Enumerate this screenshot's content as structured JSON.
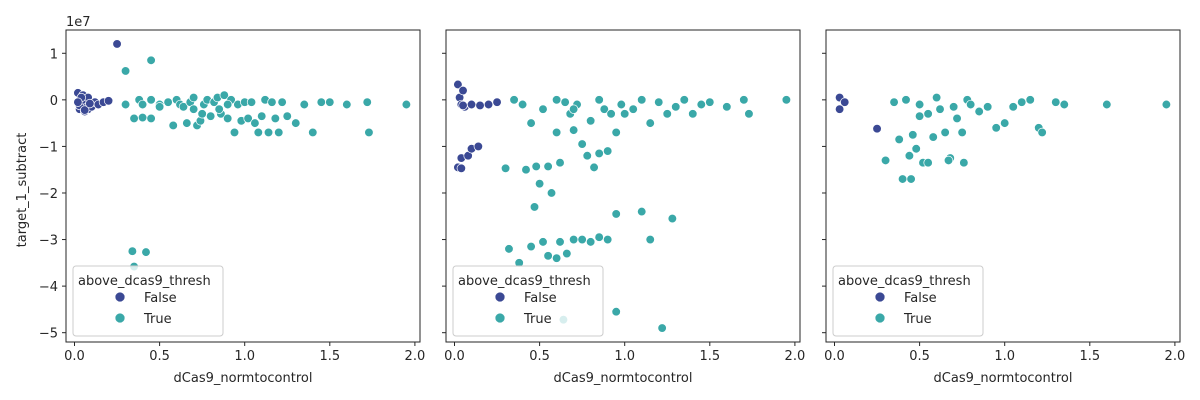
{
  "colors": {
    "false": "#3b4994",
    "true": "#3aa8a8"
  },
  "chart_data": [
    {
      "type": "scatter",
      "xlabel": "dCas9_normtocontrol",
      "ylabel": "target_1_subtract",
      "y_offset_label": "1e7",
      "xlim": [
        -0.05,
        2.03
      ],
      "ylim": [
        -5.2,
        1.5
      ],
      "x_ticks": [
        0.0,
        0.5,
        1.0,
        1.5,
        2.0
      ],
      "x_tick_labels": [
        "0.0",
        "0.5",
        "1.0",
        "1.5",
        "2.0"
      ],
      "y_ticks": [
        1,
        0,
        -1,
        -2,
        -3,
        -4,
        -5
      ],
      "y_tick_labels": [
        "1",
        "0",
        "−1",
        "−2",
        "−3",
        "−4",
        "−5"
      ],
      "legend": {
        "title": "above_dcas9_thresh",
        "entries": [
          "False",
          "True"
        ]
      },
      "series": [
        {
          "name": "False",
          "points": [
            [
              0.02,
              0.15
            ],
            [
              0.03,
              -0.2
            ],
            [
              0.04,
              -0.05
            ],
            [
              0.05,
              0.1
            ],
            [
              0.06,
              -0.25
            ],
            [
              0.07,
              -0.1
            ],
            [
              0.03,
              -0.12
            ],
            [
              0.05,
              0.0
            ],
            [
              0.08,
              -0.2
            ],
            [
              0.08,
              0.05
            ],
            [
              0.1,
              -0.15
            ],
            [
              0.12,
              -0.05
            ],
            [
              0.14,
              -0.1
            ],
            [
              0.17,
              -0.05
            ],
            [
              0.2,
              -0.02
            ],
            [
              0.06,
              -0.22
            ],
            [
              0.25,
              1.2
            ],
            [
              0.04,
              0.05
            ],
            [
              0.09,
              -0.08
            ],
            [
              0.02,
              -0.05
            ]
          ]
        },
        {
          "name": "True",
          "points": [
            [
              0.3,
              0.62
            ],
            [
              0.45,
              0.85
            ],
            [
              0.3,
              -0.1
            ],
            [
              0.35,
              -0.4
            ],
            [
              0.4,
              -0.38
            ],
            [
              0.45,
              -0.4
            ],
            [
              0.38,
              0.0
            ],
            [
              0.4,
              -0.1
            ],
            [
              0.45,
              0.0
            ],
            [
              0.5,
              -0.1
            ],
            [
              0.55,
              -0.05
            ],
            [
              0.58,
              -0.55
            ],
            [
              0.6,
              0.0
            ],
            [
              0.62,
              -0.1
            ],
            [
              0.64,
              -0.15
            ],
            [
              0.66,
              -0.5
            ],
            [
              0.68,
              -0.05
            ],
            [
              0.7,
              -0.2
            ],
            [
              0.72,
              -0.55
            ],
            [
              0.74,
              -0.45
            ],
            [
              0.76,
              -0.1
            ],
            [
              0.78,
              0.0
            ],
            [
              0.8,
              -0.35
            ],
            [
              0.82,
              -0.05
            ],
            [
              0.84,
              0.05
            ],
            [
              0.86,
              -0.3
            ],
            [
              0.88,
              0.1
            ],
            [
              0.9,
              -0.4
            ],
            [
              0.92,
              0.0
            ],
            [
              0.94,
              -0.7
            ],
            [
              0.96,
              -0.1
            ],
            [
              0.98,
              -0.45
            ],
            [
              1.0,
              -0.05
            ],
            [
              1.02,
              -0.4
            ],
            [
              1.04,
              -0.05
            ],
            [
              1.06,
              -0.5
            ],
            [
              1.08,
              -0.7
            ],
            [
              1.1,
              -0.35
            ],
            [
              1.12,
              0.0
            ],
            [
              1.14,
              -0.7
            ],
            [
              1.16,
              -0.05
            ],
            [
              1.18,
              -0.4
            ],
            [
              1.2,
              -0.7
            ],
            [
              1.22,
              -0.05
            ],
            [
              1.25,
              -0.35
            ],
            [
              1.3,
              -0.5
            ],
            [
              1.35,
              -0.1
            ],
            [
              1.4,
              -0.7
            ],
            [
              1.45,
              -0.05
            ],
            [
              1.5,
              -0.05
            ],
            [
              1.6,
              -0.1
            ],
            [
              1.72,
              -0.05
            ],
            [
              1.73,
              -0.7
            ],
            [
              1.95,
              -0.1
            ],
            [
              0.34,
              -3.25
            ],
            [
              0.35,
              -3.58
            ],
            [
              0.42,
              -3.27
            ],
            [
              0.5,
              -0.15
            ],
            [
              0.7,
              0.05
            ],
            [
              0.75,
              -0.3
            ],
            [
              0.85,
              -0.2
            ],
            [
              0.9,
              -0.1
            ]
          ]
        }
      ]
    },
    {
      "type": "scatter",
      "xlabel": "dCas9_normtocontrol",
      "ylabel": "",
      "xlim": [
        -0.05,
        2.03
      ],
      "ylim": [
        -5.2,
        1.5
      ],
      "x_ticks": [
        0.0,
        0.5,
        1.0,
        1.5,
        2.0
      ],
      "x_tick_labels": [
        "0.0",
        "0.5",
        "1.0",
        "1.5",
        "2.0"
      ],
      "y_ticks": [
        1,
        0,
        -1,
        -2,
        -3,
        -4,
        -5
      ],
      "legend": {
        "title": "above_dcas9_thresh",
        "entries": [
          "False",
          "True"
        ]
      },
      "series": [
        {
          "name": "False",
          "points": [
            [
              0.02,
              0.33
            ],
            [
              0.03,
              0.05
            ],
            [
              0.04,
              -0.1
            ],
            [
              0.05,
              0.2
            ],
            [
              0.06,
              -0.15
            ],
            [
              0.04,
              -1.25
            ],
            [
              0.08,
              -1.2
            ],
            [
              0.1,
              -1.05
            ],
            [
              0.14,
              -1.0
            ],
            [
              0.02,
              -1.45
            ],
            [
              0.04,
              -1.47
            ],
            [
              0.1,
              -0.1
            ],
            [
              0.15,
              -0.12
            ],
            [
              0.2,
              -0.1
            ],
            [
              0.25,
              -0.05
            ],
            [
              0.05,
              -0.12
            ]
          ]
        },
        {
          "name": "True",
          "points": [
            [
              0.3,
              -1.47
            ],
            [
              0.35,
              0.0
            ],
            [
              0.4,
              -0.1
            ],
            [
              0.42,
              -1.5
            ],
            [
              0.45,
              -0.5
            ],
            [
              0.48,
              -1.43
            ],
            [
              0.5,
              -1.8
            ],
            [
              0.52,
              -0.2
            ],
            [
              0.55,
              -1.43
            ],
            [
              0.57,
              -2.0
            ],
            [
              0.6,
              -0.7
            ],
            [
              0.62,
              -1.35
            ],
            [
              0.65,
              -0.05
            ],
            [
              0.68,
              -0.3
            ],
            [
              0.7,
              -0.65
            ],
            [
              0.72,
              -0.1
            ],
            [
              0.75,
              -0.95
            ],
            [
              0.78,
              -1.2
            ],
            [
              0.8,
              -0.45
            ],
            [
              0.82,
              -1.45
            ],
            [
              0.85,
              -1.15
            ],
            [
              0.88,
              -0.2
            ],
            [
              0.9,
              -1.1
            ],
            [
              0.92,
              -0.3
            ],
            [
              0.95,
              -0.7
            ],
            [
              0.98,
              -0.1
            ],
            [
              1.0,
              -0.3
            ],
            [
              1.05,
              -0.2
            ],
            [
              1.1,
              0.0
            ],
            [
              1.15,
              -0.5
            ],
            [
              1.2,
              -0.05
            ],
            [
              1.25,
              -0.3
            ],
            [
              1.3,
              -0.15
            ],
            [
              1.35,
              0.0
            ],
            [
              1.4,
              -0.3
            ],
            [
              1.45,
              -0.1
            ],
            [
              1.5,
              -0.05
            ],
            [
              1.6,
              -0.15
            ],
            [
              1.7,
              0.0
            ],
            [
              1.73,
              -0.3
            ],
            [
              1.95,
              0.0
            ],
            [
              0.47,
              -2.3
            ],
            [
              0.32,
              -3.2
            ],
            [
              0.38,
              -3.5
            ],
            [
              0.45,
              -3.15
            ],
            [
              0.52,
              -3.05
            ],
            [
              0.55,
              -3.35
            ],
            [
              0.6,
              -3.4
            ],
            [
              0.62,
              -3.05
            ],
            [
              0.66,
              -3.3
            ],
            [
              0.7,
              -3.0
            ],
            [
              0.75,
              -3.0
            ],
            [
              0.8,
              -3.05
            ],
            [
              0.85,
              -2.95
            ],
            [
              0.9,
              -3.0
            ],
            [
              0.95,
              -2.45
            ],
            [
              1.1,
              -2.4
            ],
            [
              1.15,
              -3.0
            ],
            [
              1.28,
              -2.55
            ],
            [
              0.64,
              -4.72
            ],
            [
              0.95,
              -4.55
            ],
            [
              1.22,
              -4.9
            ],
            [
              0.6,
              0.0
            ],
            [
              0.7,
              -0.2
            ],
            [
              0.85,
              0.0
            ]
          ]
        }
      ]
    },
    {
      "type": "scatter",
      "xlabel": "dCas9_normtocontrol",
      "ylabel": "",
      "xlim": [
        -0.05,
        2.03
      ],
      "ylim": [
        -5.2,
        1.5
      ],
      "x_ticks": [
        0.0,
        0.5,
        1.0,
        1.5,
        2.0
      ],
      "x_tick_labels": [
        "0.0",
        "0.5",
        "1.0",
        "1.5",
        "2.0"
      ],
      "y_ticks": [
        1,
        0,
        -1,
        -2,
        -3,
        -4,
        -5
      ],
      "legend": {
        "title": "above_dcas9_thresh",
        "entries": [
          "False",
          "True"
        ]
      },
      "series": [
        {
          "name": "False",
          "points": [
            [
              0.03,
              0.05
            ],
            [
              0.06,
              -0.05
            ],
            [
              0.03,
              -0.2
            ],
            [
              0.25,
              -0.62
            ]
          ]
        },
        {
          "name": "True",
          "points": [
            [
              0.3,
              -1.3
            ],
            [
              0.35,
              -0.05
            ],
            [
              0.38,
              -0.85
            ],
            [
              0.4,
              -1.7
            ],
            [
              0.42,
              0.0
            ],
            [
              0.44,
              -1.2
            ],
            [
              0.46,
              -0.75
            ],
            [
              0.48,
              -1.05
            ],
            [
              0.5,
              -0.1
            ],
            [
              0.52,
              -1.35
            ],
            [
              0.55,
              -0.3
            ],
            [
              0.58,
              -0.8
            ],
            [
              0.6,
              0.05
            ],
            [
              0.62,
              -0.2
            ],
            [
              0.65,
              -0.7
            ],
            [
              0.68,
              -1.25
            ],
            [
              0.7,
              -0.15
            ],
            [
              0.72,
              -0.4
            ],
            [
              0.75,
              -0.7
            ],
            [
              0.78,
              0.0
            ],
            [
              0.8,
              -0.1
            ],
            [
              0.85,
              -0.25
            ],
            [
              0.9,
              -0.15
            ],
            [
              0.95,
              -0.6
            ],
            [
              1.0,
              -0.5
            ],
            [
              1.05,
              -0.15
            ],
            [
              1.1,
              -0.05
            ],
            [
              1.15,
              0.0
            ],
            [
              1.2,
              -0.6
            ],
            [
              1.22,
              -0.7
            ],
            [
              1.3,
              -0.05
            ],
            [
              1.35,
              -0.1
            ],
            [
              1.6,
              -0.1
            ],
            [
              1.95,
              -0.1
            ],
            [
              0.45,
              -1.7
            ],
            [
              0.67,
              -1.3
            ],
            [
              0.76,
              -1.35
            ],
            [
              0.5,
              -0.35
            ],
            [
              0.55,
              -1.35
            ]
          ]
        }
      ]
    }
  ]
}
